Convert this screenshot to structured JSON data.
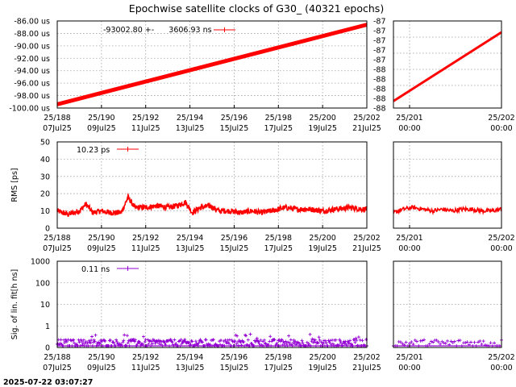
{
  "title": "Epochwise satellite clocks of G30_ (40321 epochs)",
  "timestamp": "2025-07-22 03:07:27",
  "colors": {
    "clock": "#ff0000",
    "rms": "#ff0000",
    "sig": "#9400d3"
  },
  "chart_data": [
    {
      "id": "clock-main",
      "type": "line",
      "ylabel": "",
      "ylim": [
        -100.0,
        -86.0
      ],
      "yticks": [
        "-86.00 us",
        "-88.00 us",
        "-90.00 us",
        "-92.00 us",
        "-94.00 us",
        "-96.00 us",
        "-98.00 us",
        "-100.00 us"
      ],
      "xticks": [
        {
          "l1": "25/188",
          "l2": "07Jul25"
        },
        {
          "l1": "25/190",
          "l2": "09Jul25"
        },
        {
          "l1": "25/192",
          "l2": "11Jul25"
        },
        {
          "l1": "25/194",
          "l2": "13Jul25"
        },
        {
          "l1": "25/196",
          "l2": "15Jul25"
        },
        {
          "l1": "25/198",
          "l2": "17Jul25"
        },
        {
          "l1": "25/200",
          "l2": "19Jul25"
        },
        {
          "l1": "25/202",
          "l2": "21Jul25"
        }
      ],
      "legend": "-93002.80 +-      3606.93 ns",
      "series": [
        {
          "x": [
            188,
            202
          ],
          "y": [
            -99.4,
            -86.6
          ]
        }
      ]
    },
    {
      "id": "clock-zoom",
      "type": "line",
      "ylim": [
        -88,
        -87
      ],
      "yticks": [
        "-87",
        "-87",
        "-87",
        "-87",
        "-87",
        "-88",
        "-88",
        "-88",
        "-88",
        "-88"
      ],
      "xticks": [
        {
          "l1": "25/201",
          "l2": "00:00"
        },
        {
          "l1": "25/202",
          "l2": "00:00"
        }
      ],
      "series": [
        {
          "x": [
            200.9,
            202.0
          ],
          "y": [
            -87.92,
            -87.13
          ]
        }
      ]
    },
    {
      "id": "rms-main",
      "type": "line",
      "ylabel": "RMS [ps]",
      "ylim": [
        0,
        50
      ],
      "yticks": [
        "50",
        "40",
        "30",
        "20",
        "10",
        "0"
      ],
      "xticks": [
        {
          "l1": "25/188",
          "l2": "07Jul25"
        },
        {
          "l1": "25/190",
          "l2": "09Jul25"
        },
        {
          "l1": "25/192",
          "l2": "11Jul25"
        },
        {
          "l1": "25/194",
          "l2": "13Jul25"
        },
        {
          "l1": "25/196",
          "l2": "15Jul25"
        },
        {
          "l1": "25/198",
          "l2": "17Jul25"
        },
        {
          "l1": "25/200",
          "l2": "19Jul25"
        },
        {
          "l1": "25/202",
          "l2": "21Jul25"
        }
      ],
      "legend": "10.23 ps",
      "series": [
        {
          "x": [
            188,
            188.5,
            189,
            189.3,
            189.6,
            190,
            190.4,
            190.9,
            191.2,
            191.5,
            192,
            192.5,
            193,
            193.4,
            193.8,
            194.1,
            194.5,
            194.9,
            195.3,
            195.8,
            196.3,
            196.8,
            197.2,
            197.7,
            198.3,
            198.8,
            199.4,
            200,
            200.6,
            201.2,
            201.8,
            202
          ],
          "y": [
            10,
            8,
            10,
            14,
            9,
            10,
            9,
            9,
            18,
            12,
            12,
            13,
            12,
            13,
            15,
            9,
            12,
            13,
            10,
            10,
            9,
            10,
            9,
            10,
            12,
            11,
            11,
            10,
            11,
            12,
            11,
            11
          ]
        }
      ]
    },
    {
      "id": "rms-zoom",
      "type": "line",
      "ylim": [
        0,
        50
      ],
      "xticks": [
        {
          "l1": "25/201",
          "l2": "00:00"
        },
        {
          "l1": "25/202",
          "l2": "00:00"
        }
      ],
      "series": [
        {
          "x": [
            200.9,
            201.0,
            201.1,
            201.2,
            201.3,
            201.4,
            201.5,
            201.6,
            201.7,
            201.8,
            201.9,
            202.0
          ],
          "y": [
            9,
            11,
            12,
            11,
            10,
            11,
            10,
            11,
            11,
            10,
            10,
            11
          ]
        }
      ]
    },
    {
      "id": "sig-main",
      "type": "scatter",
      "ylabel": "Sig. of lin. fit[h ns]",
      "ylim": [
        0,
        1000
      ],
      "scale": "log",
      "yticks": [
        "1000",
        "100",
        "10",
        "1",
        "0"
      ],
      "xticks": [
        {
          "l1": "25/188",
          "l2": "07Jul25"
        },
        {
          "l1": "25/190",
          "l2": "09Jul25"
        },
        {
          "l1": "25/192",
          "l2": "11Jul25"
        },
        {
          "l1": "25/194",
          "l2": "13Jul25"
        },
        {
          "l1": "25/196",
          "l2": "15Jul25"
        },
        {
          "l1": "25/198",
          "l2": "17Jul25"
        },
        {
          "l1": "25/200",
          "l2": "19Jul25"
        },
        {
          "l1": "25/202",
          "l2": "21Jul25"
        }
      ],
      "legend": "0.11 ns",
      "series": [
        {
          "x": [
            188,
            202
          ],
          "y": [
            0.11,
            0.11
          ]
        }
      ]
    },
    {
      "id": "sig-zoom",
      "type": "scatter",
      "scale": "log",
      "ylim": [
        0,
        1000
      ],
      "xticks": [
        {
          "l1": "25/201",
          "l2": "00:00"
        },
        {
          "l1": "25/202",
          "l2": "00:00"
        }
      ],
      "series": [
        {
          "x": [
            200.9,
            202.0
          ],
          "y": [
            0.11,
            0.11
          ]
        }
      ]
    }
  ]
}
